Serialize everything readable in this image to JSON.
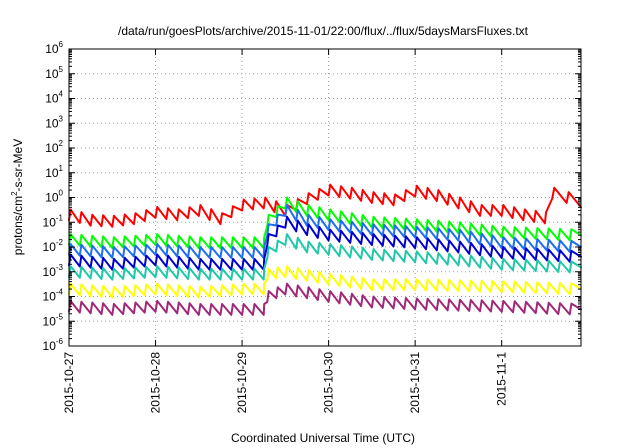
{
  "chart_data": {
    "type": "line",
    "title": "/data/run/goesPlots/archive/2015-11-01/22:00/flux/../flux/5daysMarsFluxes.txt",
    "xlabel": "Coordinated Universal Time (UTC)",
    "ylabel": {
      "prefix": "protons/cm",
      "superscript": "2",
      "suffix": "-s-sr-MeV"
    },
    "yscale": "log",
    "ylim": [
      1e-06,
      1000000.0
    ],
    "y_ticks": [
      {
        "base": "10",
        "exp": "6",
        "value": 1000000.0
      },
      {
        "base": "10",
        "exp": "5",
        "value": 100000.0
      },
      {
        "base": "10",
        "exp": "4",
        "value": 10000.0
      },
      {
        "base": "10",
        "exp": "3",
        "value": 1000.0
      },
      {
        "base": "10",
        "exp": "2",
        "value": 100.0
      },
      {
        "base": "10",
        "exp": "1",
        "value": 10.0
      },
      {
        "base": "10",
        "exp": "0",
        "value": 1
      },
      {
        "base": "10",
        "exp": "-1",
        "value": 0.1
      },
      {
        "base": "10",
        "exp": "-2",
        "value": 0.01
      },
      {
        "base": "10",
        "exp": "-3",
        "value": 0.001
      },
      {
        "base": "10",
        "exp": "-4",
        "value": 0.0001
      },
      {
        "base": "10",
        "exp": "-5",
        "value": 1e-05
      },
      {
        "base": "10",
        "exp": "-6",
        "value": 1e-06
      }
    ],
    "xlim": [
      "2015-10-27",
      "2015-11-01 22:00"
    ],
    "x_ticks": [
      "2015-10-27",
      "2015-10-28",
      "2015-10-29",
      "2015-10-30",
      "2015-10-31",
      "2015-11-1"
    ],
    "grid": true,
    "series": [
      {
        "color": "#ff0000",
        "points": [
          [
            "2015-10-27 00:00",
            0.2
          ],
          [
            "2015-10-27 06:00",
            0.12
          ],
          [
            "2015-10-27 12:00",
            0.11
          ],
          [
            "2015-10-27 18:00",
            0.14
          ],
          [
            "2015-10-28 00:00",
            0.25
          ],
          [
            "2015-10-28 06:00",
            0.2
          ],
          [
            "2015-10-28 12:00",
            0.3
          ],
          [
            "2015-10-28 18:00",
            0.14
          ],
          [
            "2015-10-29 00:00",
            0.5
          ],
          [
            "2015-10-29 06:00",
            0.6
          ],
          [
            "2015-10-29 12:00",
            0.3
          ],
          [
            "2015-10-29 18:00",
            0.9
          ],
          [
            "2015-10-30 00:00",
            2.0
          ],
          [
            "2015-10-30 06:00",
            1.5
          ],
          [
            "2015-10-30 12:00",
            1.0
          ],
          [
            "2015-10-30 18:00",
            0.8
          ],
          [
            "2015-10-31 00:00",
            1.8
          ],
          [
            "2015-10-31 06:00",
            1.2
          ],
          [
            "2015-10-31 12:00",
            0.6
          ],
          [
            "2015-10-31 18:00",
            0.3
          ],
          [
            "2015-11-01 00:00",
            0.3
          ],
          [
            "2015-11-01 06:00",
            0.2
          ],
          [
            "2015-11-01 12:00",
            0.15
          ],
          [
            "2015-11-01 14:00",
            1.5
          ],
          [
            "2015-11-01 18:00",
            1.0
          ],
          [
            "2015-11-01 22:00",
            0.4
          ]
        ]
      },
      {
        "color": "#00ff00",
        "points": [
          [
            "2015-10-27 00:00",
            0.02
          ],
          [
            "2015-10-27 12:00",
            0.015
          ],
          [
            "2015-10-28 00:00",
            0.02
          ],
          [
            "2015-10-28 12:00",
            0.015
          ],
          [
            "2015-10-29 00:00",
            0.015
          ],
          [
            "2015-10-29 06:00",
            0.015
          ],
          [
            "2015-10-29 07:00",
            0.12
          ],
          [
            "2015-10-29 12:00",
            0.6
          ],
          [
            "2015-10-29 18:00",
            0.3
          ],
          [
            "2015-10-30 00:00",
            0.2
          ],
          [
            "2015-10-30 12:00",
            0.1
          ],
          [
            "2015-10-31 00:00",
            0.08
          ],
          [
            "2015-10-31 12:00",
            0.06
          ],
          [
            "2015-11-01 00:00",
            0.04
          ],
          [
            "2015-11-01 22:00",
            0.03
          ]
        ]
      },
      {
        "color": "#1e6ef0",
        "points": [
          [
            "2015-10-27 00:00",
            0.008
          ],
          [
            "2015-10-27 12:00",
            0.006
          ],
          [
            "2015-10-28 00:00",
            0.008
          ],
          [
            "2015-10-28 12:00",
            0.006
          ],
          [
            "2015-10-29 00:00",
            0.006
          ],
          [
            "2015-10-29 06:00",
            0.006
          ],
          [
            "2015-10-29 07:00",
            0.05
          ],
          [
            "2015-10-29 12:00",
            0.3
          ],
          [
            "2015-10-29 18:00",
            0.12
          ],
          [
            "2015-10-30 00:00",
            0.08
          ],
          [
            "2015-10-30 12:00",
            0.05
          ],
          [
            "2015-10-31 00:00",
            0.04
          ],
          [
            "2015-10-31 12:00",
            0.03
          ],
          [
            "2015-11-01 00:00",
            0.015
          ],
          [
            "2015-11-01 22:00",
            0.01
          ]
        ]
      },
      {
        "color": "#0000cd",
        "points": [
          [
            "2015-10-27 00:00",
            0.003
          ],
          [
            "2015-10-27 12:00",
            0.002
          ],
          [
            "2015-10-28 00:00",
            0.003
          ],
          [
            "2015-10-28 12:00",
            0.002
          ],
          [
            "2015-10-29 00:00",
            0.002
          ],
          [
            "2015-10-29 06:00",
            0.002
          ],
          [
            "2015-10-29 07:00",
            0.02
          ],
          [
            "2015-10-29 12:00",
            0.1
          ],
          [
            "2015-10-29 18:00",
            0.05
          ],
          [
            "2015-10-30 00:00",
            0.03
          ],
          [
            "2015-10-30 12:00",
            0.02
          ],
          [
            "2015-10-31 00:00",
            0.015
          ],
          [
            "2015-10-31 12:00",
            0.01
          ],
          [
            "2015-11-01 00:00",
            0.006
          ],
          [
            "2015-11-01 22:00",
            0.004
          ]
        ]
      },
      {
        "color": "#20c8a8",
        "points": [
          [
            "2015-10-27 00:00",
            0.001
          ],
          [
            "2015-10-27 12:00",
            0.0008
          ],
          [
            "2015-10-28 00:00",
            0.001
          ],
          [
            "2015-10-28 12:00",
            0.0008
          ],
          [
            "2015-10-29 00:00",
            0.0008
          ],
          [
            "2015-10-29 06:00",
            0.0008
          ],
          [
            "2015-10-29 07:00",
            0.006
          ],
          [
            "2015-10-29 12:00",
            0.02
          ],
          [
            "2015-10-29 18:00",
            0.01
          ],
          [
            "2015-10-30 00:00",
            0.008
          ],
          [
            "2015-10-30 12:00",
            0.005
          ],
          [
            "2015-10-31 00:00",
            0.004
          ],
          [
            "2015-10-31 12:00",
            0.003
          ],
          [
            "2015-11-01 00:00",
            0.002
          ],
          [
            "2015-11-01 22:00",
            0.0015
          ]
        ]
      },
      {
        "color": "#ffff00",
        "points": [
          [
            "2015-10-27 00:00",
            0.0002
          ],
          [
            "2015-10-27 12:00",
            0.00015
          ],
          [
            "2015-10-28 00:00",
            0.0002
          ],
          [
            "2015-10-28 12:00",
            0.00015
          ],
          [
            "2015-10-29 00:00",
            0.0002
          ],
          [
            "2015-10-29 06:00",
            0.0002
          ],
          [
            "2015-10-29 07:00",
            0.0008
          ],
          [
            "2015-10-29 12:00",
            0.001
          ],
          [
            "2015-10-30 00:00",
            0.0005
          ],
          [
            "2015-10-30 12:00",
            0.0003
          ],
          [
            "2015-10-31 00:00",
            0.0003
          ],
          [
            "2015-11-01 00:00",
            0.00025
          ],
          [
            "2015-11-01 22:00",
            0.0002
          ]
        ]
      },
      {
        "color": "#a02878",
        "points": [
          [
            "2015-10-27 00:00",
            4e-05
          ],
          [
            "2015-10-27 12:00",
            3e-05
          ],
          [
            "2015-10-28 00:00",
            4e-05
          ],
          [
            "2015-10-28 12:00",
            3e-05
          ],
          [
            "2015-10-29 00:00",
            3e-05
          ],
          [
            "2015-10-29 06:00",
            3e-05
          ],
          [
            "2015-10-29 07:00",
            0.0001
          ],
          [
            "2015-10-29 12:00",
            0.0002
          ],
          [
            "2015-10-30 00:00",
            0.0001
          ],
          [
            "2015-10-30 12:00",
            6e-05
          ],
          [
            "2015-10-31 00:00",
            5e-05
          ],
          [
            "2015-11-01 00:00",
            4e-05
          ],
          [
            "2015-11-01 22:00",
            3e-05
          ]
        ]
      }
    ]
  }
}
